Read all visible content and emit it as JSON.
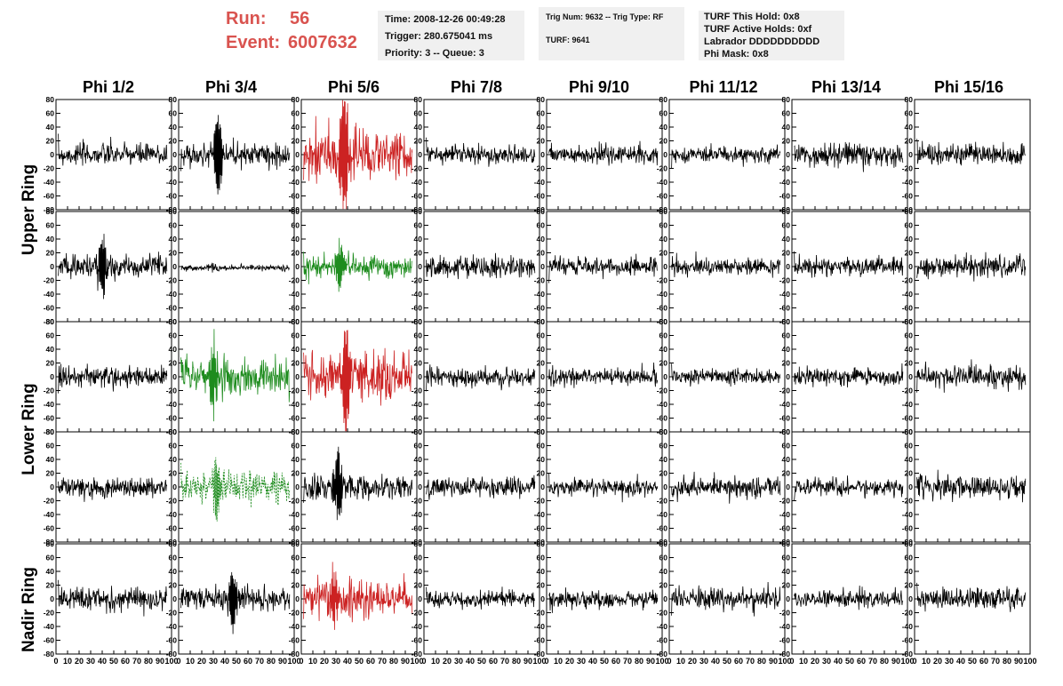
{
  "header": {
    "run_label": "Run:",
    "run_value": "56",
    "event_label": "Event:",
    "event_value": "6007632",
    "info_box_1": [
      "Time: 2008-12-26 00:49:28",
      "Trigger: 280.675041 ms",
      "Priority: 3 -- Queue: 3"
    ],
    "info_box_2": [
      "Trig Num: 9632 -- Trig Type: RF",
      "TURF: 9641"
    ],
    "info_box_3": [
      "TURF This Hold: 0x8",
      "TURF Active Holds: 0xf",
      "Labrador DDDDDDDDDD",
      "Phi Mask: 0x8"
    ]
  },
  "columns": [
    "Phi 1/2",
    "Phi 3/4",
    "Phi 5/6",
    "Phi 7/8",
    "Phi 9/10",
    "Phi 11/12",
    "Phi 13/14",
    "Phi 15/16"
  ],
  "rings": [
    "Upper Ring",
    "Lower Ring",
    "Nadir Ring"
  ],
  "colors": {
    "normal": "#000000",
    "red": "#cc2222",
    "green": "#1e8c1e",
    "header_red": "#d9534f",
    "box_bg": "#f0f0f0"
  },
  "chart_data": {
    "type": "line",
    "title": "",
    "xlabel": "",
    "ylabel": "",
    "xlim": [
      0,
      100
    ],
    "ylim": [
      -80,
      80
    ],
    "x_ticks": [
      "0",
      "10",
      "20",
      "30",
      "40",
      "50",
      "60",
      "70",
      "80",
      "90",
      "100"
    ],
    "y_ticks": [
      "-80",
      "-60",
      "-40",
      "-20",
      "0",
      "20",
      "40",
      "60",
      "80"
    ],
    "panel_rows": 5,
    "panel_cols": 8,
    "panels": [
      [
        {
          "color": "normal",
          "amp": 13
        },
        {
          "color": "normal",
          "amp": 14,
          "spike": [
            34,
            52
          ]
        },
        {
          "color": "red",
          "amp": 28,
          "spike": [
            37,
            78
          ]
        },
        {
          "color": "normal",
          "amp": 11
        },
        {
          "color": "normal",
          "amp": 11
        },
        {
          "color": "normal",
          "amp": 9
        },
        {
          "color": "normal",
          "amp": 12
        },
        {
          "color": "normal",
          "amp": 13
        }
      ],
      [
        {
          "color": "normal",
          "amp": 14,
          "spike": [
            40,
            38
          ]
        },
        {
          "color": "normal",
          "amp": 2,
          "flat": true
        },
        {
          "color": "green",
          "amp": 12,
          "spike": [
            33,
            30
          ]
        },
        {
          "color": "normal",
          "amp": 12
        },
        {
          "color": "normal",
          "amp": 11
        },
        {
          "color": "normal",
          "amp": 10
        },
        {
          "color": "normal",
          "amp": 11
        },
        {
          "color": "normal",
          "amp": 13
        }
      ],
      [
        {
          "color": "normal",
          "amp": 12
        },
        {
          "color": "green",
          "amp": 22,
          "spike": [
            31,
            48
          ]
        },
        {
          "color": "red",
          "amp": 26,
          "spike": [
            39,
            68
          ]
        },
        {
          "color": "normal",
          "amp": 11
        },
        {
          "color": "normal",
          "amp": 10
        },
        {
          "color": "normal",
          "amp": 9
        },
        {
          "color": "normal",
          "amp": 11
        },
        {
          "color": "normal",
          "amp": 13
        }
      ],
      [
        {
          "color": "normal",
          "amp": 12
        },
        {
          "color": "green",
          "amp": 20,
          "dashed": true,
          "spike": [
            33,
            40
          ]
        },
        {
          "color": "normal",
          "amp": 15,
          "spike": [
            32,
            42
          ]
        },
        {
          "color": "normal",
          "amp": 11
        },
        {
          "color": "normal",
          "amp": 10
        },
        {
          "color": "normal",
          "amp": 12
        },
        {
          "color": "normal",
          "amp": 10
        },
        {
          "color": "normal",
          "amp": 14
        }
      ],
      [
        {
          "color": "normal",
          "amp": 14
        },
        {
          "color": "normal",
          "amp": 13,
          "spike": [
            47,
            38
          ]
        },
        {
          "color": "red",
          "amp": 20,
          "spike": [
            28,
            35
          ]
        },
        {
          "color": "normal",
          "amp": 10
        },
        {
          "color": "normal",
          "amp": 11
        },
        {
          "color": "normal",
          "amp": 12
        },
        {
          "color": "normal",
          "amp": 10
        },
        {
          "color": "normal",
          "amp": 13
        }
      ]
    ]
  }
}
